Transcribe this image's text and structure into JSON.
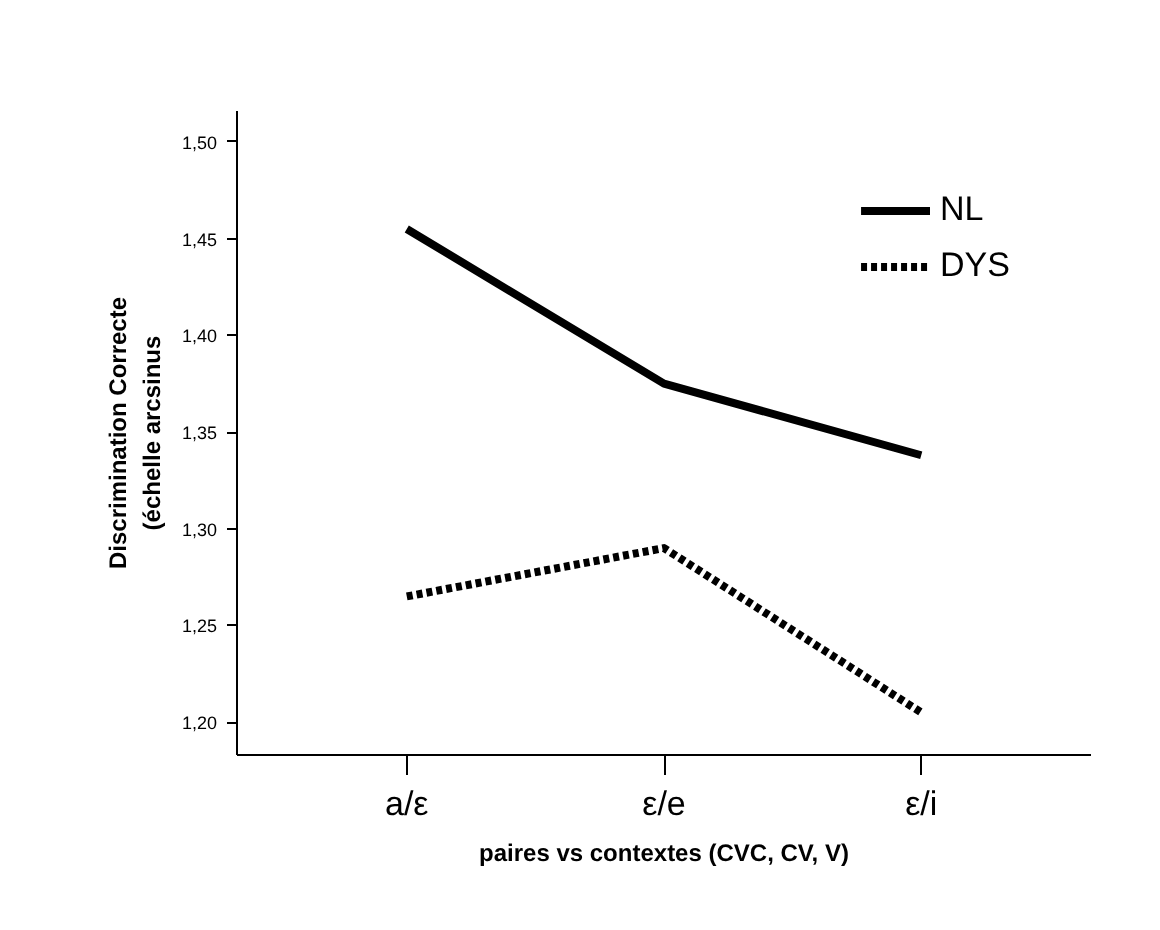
{
  "chart_data": {
    "type": "line",
    "xlabel": "paires vs contextes (CVC, CV, V)",
    "ylabel": "Discrimination Correcte\n(échelle arcsinus",
    "categories": [
      "a/ε",
      "ε/e",
      "ε/i"
    ],
    "series": [
      {
        "name": "NL",
        "color": "#000000",
        "values": [
          1.455,
          1.375,
          1.338
        ],
        "line_style": "solid"
      },
      {
        "name": "DYS",
        "color": "#000000",
        "values": [
          1.265,
          1.29,
          1.205
        ],
        "line_style": "dotted"
      }
    ],
    "ylim": [
      1.183,
      1.516
    ],
    "yticks": [
      {
        "value": 1.2,
        "label": "1,20"
      },
      {
        "value": 1.25,
        "label": "1,25"
      },
      {
        "value": 1.3,
        "label": "1,30"
      },
      {
        "value": 1.35,
        "label": "1,35"
      },
      {
        "value": 1.4,
        "label": "1,40"
      },
      {
        "value": 1.45,
        "label": "1,45"
      },
      {
        "value": 1.5,
        "label": "1,50"
      }
    ],
    "grid": false,
    "legend": "top right",
    "marker": "none"
  }
}
